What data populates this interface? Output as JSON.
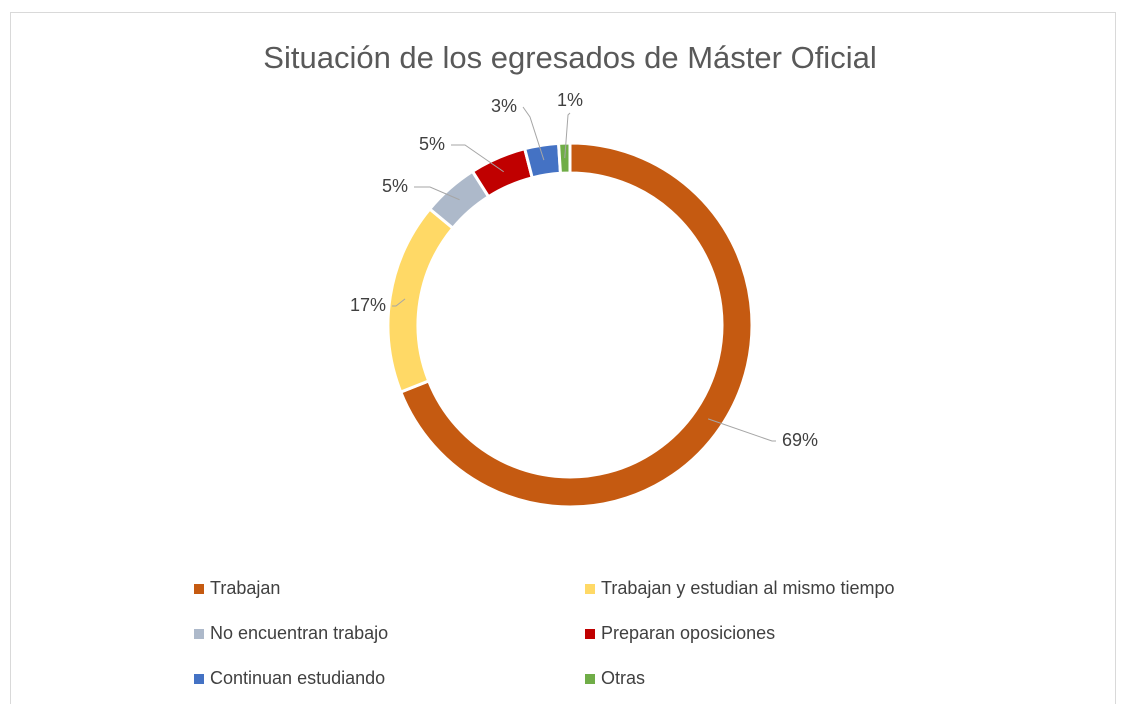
{
  "chart_data": {
    "type": "donut",
    "title": "Situación de los egresados de Máster Oficial",
    "categories": [
      "Trabajan",
      "Trabajan y estudian al mismo tiempo",
      "No encuentran trabajo",
      "Preparan oposiciones",
      "Continuan estudiando",
      "Otras"
    ],
    "values": [
      69,
      17,
      5,
      5,
      3,
      1
    ],
    "value_labels": [
      "69%",
      "17%",
      "5%",
      "5%",
      "3%",
      "1%"
    ],
    "colors": [
      "#c55a11",
      "#ffd966",
      "#adb9ca",
      "#c00000",
      "#4472c4",
      "#70ad47"
    ]
  }
}
